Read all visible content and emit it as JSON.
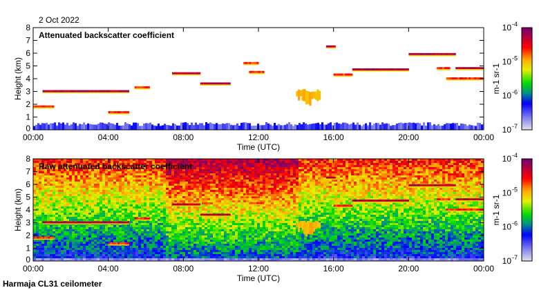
{
  "date_label": "2 Oct 2022",
  "footer": "Harmaja CL31 ceilometer",
  "chart_data": [
    {
      "type": "heatmap",
      "title": "Attenuated backscatter coefficient",
      "xlabel": "Time (UTC)",
      "ylabel": "Height (km)",
      "xlim": [
        0,
        24
      ],
      "ylim": [
        0,
        8
      ],
      "xticks": [
        "00:00",
        "04:00",
        "08:00",
        "12:00",
        "16:00",
        "20:00",
        "00:00"
      ],
      "yticks": [
        "0",
        "1",
        "2",
        "3",
        "4",
        "5",
        "6",
        "7",
        "8"
      ],
      "colorbar": {
        "label": "m-1 sr-1",
        "ticks": [
          "10-7",
          "10-6",
          "10-5",
          "10-4"
        ],
        "range": [
          1e-07,
          0.0001
        ],
        "scale": "log"
      },
      "layers": [
        {
          "t0": 0.5,
          "t1": 5.0,
          "h": 3.0,
          "level": "high"
        },
        {
          "t0": 0.0,
          "t1": 1.0,
          "h": 1.8,
          "level": "mid"
        },
        {
          "t0": 4.0,
          "t1": 5.0,
          "h": 1.35,
          "level": "mid"
        },
        {
          "t0": 5.4,
          "t1": 6.1,
          "h": 3.3,
          "level": "mid"
        },
        {
          "t0": 7.4,
          "t1": 8.8,
          "h": 4.4,
          "level": "high"
        },
        {
          "t0": 8.9,
          "t1": 10.4,
          "h": 3.6,
          "level": "high"
        },
        {
          "t0": 11.2,
          "t1": 11.9,
          "h": 5.2,
          "level": "mid"
        },
        {
          "t0": 11.5,
          "t1": 12.2,
          "h": 4.5,
          "level": "mid"
        },
        {
          "t0": 15.6,
          "t1": 16.0,
          "h": 6.5,
          "level": "high"
        },
        {
          "t0": 16.0,
          "t1": 17.0,
          "h": 4.3,
          "level": "mid"
        },
        {
          "t0": 17.0,
          "t1": 20.0,
          "h": 4.7,
          "level": "high"
        },
        {
          "t0": 20.0,
          "t1": 22.5,
          "h": 5.9,
          "level": "high"
        },
        {
          "t0": 21.5,
          "t1": 22.2,
          "h": 4.8,
          "level": "mid"
        },
        {
          "t0": 22.5,
          "t1": 24.0,
          "h": 4.8,
          "level": "high"
        },
        {
          "t0": 22.0,
          "t1": 24.0,
          "h": 4.0,
          "level": "mid"
        }
      ],
      "precipitation": {
        "t0": 14.0,
        "t1": 15.2,
        "h0": 1.8,
        "h1": 3.2
      }
    },
    {
      "type": "heatmap",
      "title": "Raw attenuated backscatter coefficient",
      "xlabel": "Time (UTC)",
      "ylabel": "Height (km)",
      "xlim": [
        0,
        24
      ],
      "ylim": [
        0,
        8
      ],
      "xticks": [
        "00:00",
        "04:00",
        "08:00",
        "12:00",
        "16:00",
        "20:00",
        "00:00"
      ],
      "yticks": [
        "0",
        "1",
        "2",
        "3",
        "4",
        "5",
        "6",
        "7",
        "8"
      ],
      "colorbar": {
        "label": "m-1 sr-1",
        "ticks": [
          "10-7",
          "10-6",
          "10-5",
          "10-4"
        ],
        "range": [
          1e-07,
          0.0001
        ],
        "scale": "log"
      }
    }
  ]
}
